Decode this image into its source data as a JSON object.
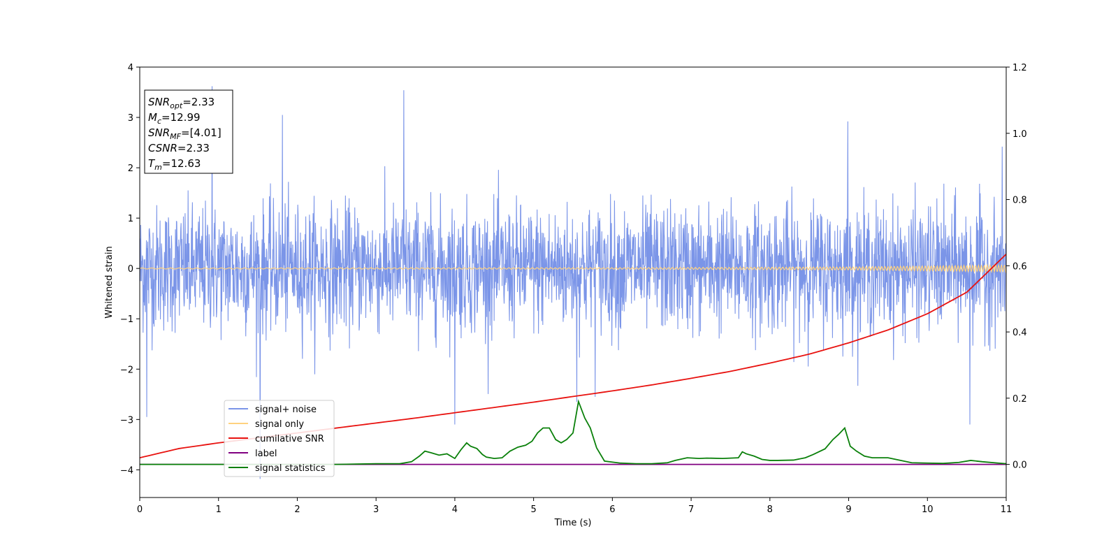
{
  "chart_data": {
    "type": "line",
    "xlabel": "Time (s)",
    "ylabel": "Whitened strain",
    "xlim": [
      0,
      11
    ],
    "ylim": [
      -4.55,
      4.0
    ],
    "y2lim": [
      -0.1,
      1.2
    ],
    "x_ticks": [
      0,
      1,
      2,
      3,
      4,
      5,
      6,
      7,
      8,
      9,
      10,
      11
    ],
    "x_tick_labels": [
      "0",
      "1",
      "2",
      "3",
      "4",
      "5",
      "6",
      "7",
      "8",
      "9",
      "10",
      "11"
    ],
    "y_ticks": [
      -4,
      -3,
      -2,
      -1,
      0,
      1,
      2,
      3,
      4
    ],
    "y_tick_labels": [
      "−4",
      "−3",
      "−2",
      "−1",
      "0",
      "1",
      "2",
      "3",
      "4"
    ],
    "y2_ticks": [
      0.0,
      0.2,
      0.4,
      0.6,
      0.8,
      1.0,
      1.2
    ],
    "y2_tick_labels": [
      "0.0",
      "0.2",
      "0.4",
      "0.6",
      "0.8",
      "1.0",
      "1.2"
    ],
    "grid": false,
    "legend_position": "lower-left",
    "annotation": [
      {
        "base": "SNR",
        "sub": "opt",
        "value": "=2.33"
      },
      {
        "base": "M",
        "sub": "c",
        "value": "=12.99"
      },
      {
        "base": "SNR",
        "sub": "MF",
        "value": "=[4.01]"
      },
      {
        "base": "CSNR",
        "sub": "",
        "value": "=2.33"
      },
      {
        "base": "T",
        "sub": "m",
        "value": "=12.63"
      }
    ],
    "series": [
      {
        "name": "signal+ noise",
        "axis": "left",
        "color": "#7b95e8",
        "kind": "noise",
        "sigma": 0.62,
        "duration": 11,
        "spikes": [
          {
            "x": 0.92,
            "y": 3.62
          },
          {
            "x": 0.92,
            "y": -3.4
          },
          {
            "x": 1.53,
            "y": -4.18
          },
          {
            "x": 3.35,
            "y": 3.54
          },
          {
            "x": 1.81,
            "y": 3.05
          },
          {
            "x": 0.09,
            "y": -2.95
          },
          {
            "x": 4.0,
            "y": -3.1
          },
          {
            "x": 10.54,
            "y": -3.1
          },
          {
            "x": 5.55,
            "y": -2.65
          },
          {
            "x": 5.78,
            "y": -2.55
          },
          {
            "x": 8.99,
            "y": 2.92
          },
          {
            "x": 10.95,
            "y": 2.42
          }
        ]
      },
      {
        "name": "signal only",
        "axis": "left",
        "color": "#ffd27f",
        "kind": "chirp",
        "x": [
          0,
          6,
          9,
          10,
          11
        ],
        "amplitude": [
          0.01,
          0.015,
          0.03,
          0.05,
          0.07
        ]
      },
      {
        "name": "cumilative SNR",
        "axis": "right",
        "color": "#e8120f",
        "x": [
          0,
          0.5,
          1,
          1.5,
          2,
          2.5,
          3,
          3.5,
          4,
          4.5,
          5,
          5.5,
          6,
          6.5,
          7,
          7.5,
          8,
          8.5,
          9,
          9.5,
          10,
          10.5,
          11
        ],
        "values": [
          0.02,
          0.048,
          0.065,
          0.08,
          0.095,
          0.11,
          0.125,
          0.14,
          0.156,
          0.172,
          0.188,
          0.205,
          0.222,
          0.24,
          0.26,
          0.281,
          0.306,
          0.333,
          0.367,
          0.406,
          0.455,
          0.52,
          0.635
        ]
      },
      {
        "name": "label",
        "axis": "right",
        "color": "#800080",
        "x": [
          0,
          11
        ],
        "values": [
          0.0,
          0.0
        ]
      },
      {
        "name": "signal statistics",
        "axis": "right",
        "color": "#0a800a",
        "x": [
          0,
          0.5,
          1,
          1.5,
          2,
          2.5,
          3,
          3.3,
          3.45,
          3.55,
          3.62,
          3.7,
          3.8,
          3.9,
          4.0,
          4.08,
          4.15,
          4.2,
          4.28,
          4.35,
          4.4,
          4.5,
          4.6,
          4.7,
          4.8,
          4.9,
          4.98,
          5.05,
          5.12,
          5.2,
          5.28,
          5.35,
          5.42,
          5.5,
          5.57,
          5.65,
          5.72,
          5.8,
          5.9,
          6.1,
          6.3,
          6.5,
          6.7,
          6.8,
          6.95,
          7.1,
          7.2,
          7.4,
          7.6,
          7.65,
          7.7,
          7.8,
          7.9,
          8.0,
          8.1,
          8.3,
          8.45,
          8.55,
          8.7,
          8.8,
          8.87,
          8.95,
          9.02,
          9.1,
          9.2,
          9.3,
          9.5,
          9.6,
          9.8,
          10.0,
          10.2,
          10.4,
          10.55,
          10.7,
          10.9,
          11.0
        ],
        "values": [
          0.0,
          0.0,
          0.0,
          0.0,
          0.0,
          0.0,
          0.002,
          0.002,
          0.008,
          0.025,
          0.04,
          0.035,
          0.028,
          0.032,
          0.018,
          0.045,
          0.065,
          0.055,
          0.048,
          0.03,
          0.022,
          0.018,
          0.02,
          0.04,
          0.052,
          0.058,
          0.07,
          0.095,
          0.11,
          0.11,
          0.075,
          0.065,
          0.075,
          0.095,
          0.19,
          0.14,
          0.11,
          0.05,
          0.01,
          0.004,
          0.002,
          0.002,
          0.005,
          0.012,
          0.02,
          0.018,
          0.019,
          0.018,
          0.02,
          0.038,
          0.032,
          0.025,
          0.015,
          0.012,
          0.012,
          0.013,
          0.02,
          0.03,
          0.047,
          0.075,
          0.09,
          0.11,
          0.055,
          0.04,
          0.025,
          0.02,
          0.02,
          0.015,
          0.005,
          0.004,
          0.003,
          0.006,
          0.012,
          0.008,
          0.004,
          0.002
        ]
      }
    ]
  }
}
